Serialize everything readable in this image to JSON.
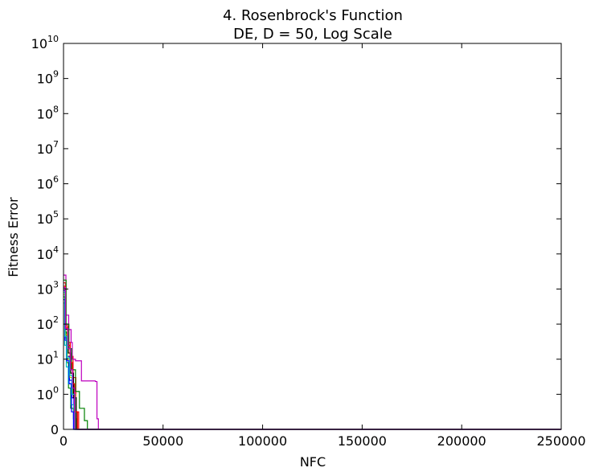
{
  "chart_data": {
    "type": "line",
    "title": "4.   Rosenbrock's Function",
    "subtitle": "DE, D = 50, Log Scale",
    "xlabel": "NFC",
    "ylabel": "Fitness Error",
    "xlim": [
      0,
      250000
    ],
    "ylim": [
      0,
      10000000000
    ],
    "yscale": "symlog",
    "grid": false,
    "x_ticks": [
      "0",
      "50000",
      "100000",
      "150000",
      "200000",
      "250000"
    ],
    "y_ticks": [
      {
        "base": "0",
        "exp": ""
      },
      {
        "base": "10",
        "exp": "0"
      },
      {
        "base": "10",
        "exp": "1"
      },
      {
        "base": "10",
        "exp": "2"
      },
      {
        "base": "10",
        "exp": "3"
      },
      {
        "base": "10",
        "exp": "4"
      },
      {
        "base": "10",
        "exp": "5"
      },
      {
        "base": "10",
        "exp": "6"
      },
      {
        "base": "10",
        "exp": "7"
      },
      {
        "base": "10",
        "exp": "8"
      },
      {
        "base": "10",
        "exp": "9"
      },
      {
        "base": "10",
        "exp": "10"
      }
    ],
    "y_tick_values": [
      0,
      1,
      10,
      100,
      1000,
      10000,
      100000,
      1000000,
      10000000,
      100000000,
      1000000000,
      10000000000
    ],
    "series": [
      {
        "color": "#0000ff",
        "x": [
          0,
          800,
          1800,
          3000,
          4200,
          5200,
          6000,
          250000
        ],
        "y": [
          900,
          40,
          12,
          2.5,
          0.9,
          0.25,
          0,
          0
        ]
      },
      {
        "color": "#008000",
        "x": [
          0,
          700,
          1500,
          2500,
          3600,
          5000,
          6500,
          250000
        ],
        "y": [
          600,
          60,
          8,
          1.5,
          0.6,
          0.3,
          0,
          0
        ]
      },
      {
        "color": "#ff0000",
        "x": [
          0,
          1000,
          2200,
          3400,
          4800,
          6200,
          7600,
          250000
        ],
        "y": [
          1500,
          90,
          30,
          12,
          3,
          0.5,
          0,
          0
        ]
      },
      {
        "color": "#00bfbf",
        "x": [
          0,
          600,
          1400,
          2400,
          3800,
          5200,
          250000
        ],
        "y": [
          400,
          25,
          6,
          2,
          0.7,
          0,
          0
        ]
      },
      {
        "color": "#bf00bf",
        "x": [
          0,
          1200,
          2600,
          3800,
          4400,
          6000,
          9000,
          16000,
          16800,
          17500,
          250000
        ],
        "y": [
          2500,
          180,
          70,
          30,
          10,
          9,
          2.4,
          2.3,
          0.3,
          0,
          0
        ]
      },
      {
        "color": "#bfbf00",
        "x": [
          0,
          900,
          2000,
          3200,
          4600,
          6000,
          250000
        ],
        "y": [
          700,
          50,
          10,
          3,
          1,
          0,
          0
        ]
      },
      {
        "color": "#000000",
        "x": [
          0,
          1100,
          2400,
          3600,
          5000,
          6400,
          250000
        ],
        "y": [
          1000,
          70,
          15,
          4,
          0.9,
          0,
          0
        ]
      },
      {
        "color": "#008000",
        "x": [
          0,
          1300,
          2700,
          4000,
          6000,
          8000,
          10500,
          12000,
          250000
        ],
        "y": [
          1800,
          100,
          20,
          5,
          1.2,
          0.6,
          0.25,
          0,
          0
        ]
      },
      {
        "color": "#0000ff",
        "x": [
          0,
          700,
          1600,
          2800,
          4000,
          5000,
          250000
        ],
        "y": [
          500,
          35,
          9,
          2,
          0.5,
          0,
          0
        ]
      },
      {
        "color": "#ff0000",
        "x": [
          0,
          1000,
          2100,
          3300,
          4500,
          5500,
          7000,
          250000
        ],
        "y": [
          1200,
          80,
          25,
          8,
          2,
          0.5,
          0,
          0
        ]
      },
      {
        "color": "#00bfbf",
        "x": [
          0,
          800,
          1700,
          3100,
          4300,
          5800,
          250000
        ],
        "y": [
          800,
          45,
          11,
          3.5,
          1,
          0,
          0
        ]
      },
      {
        "color": "#bf00bf",
        "x": [
          0,
          1000,
          2300,
          3500,
          4600,
          5600,
          250000
        ],
        "y": [
          1100,
          75,
          20,
          5,
          1.5,
          0,
          0
        ]
      }
    ]
  }
}
